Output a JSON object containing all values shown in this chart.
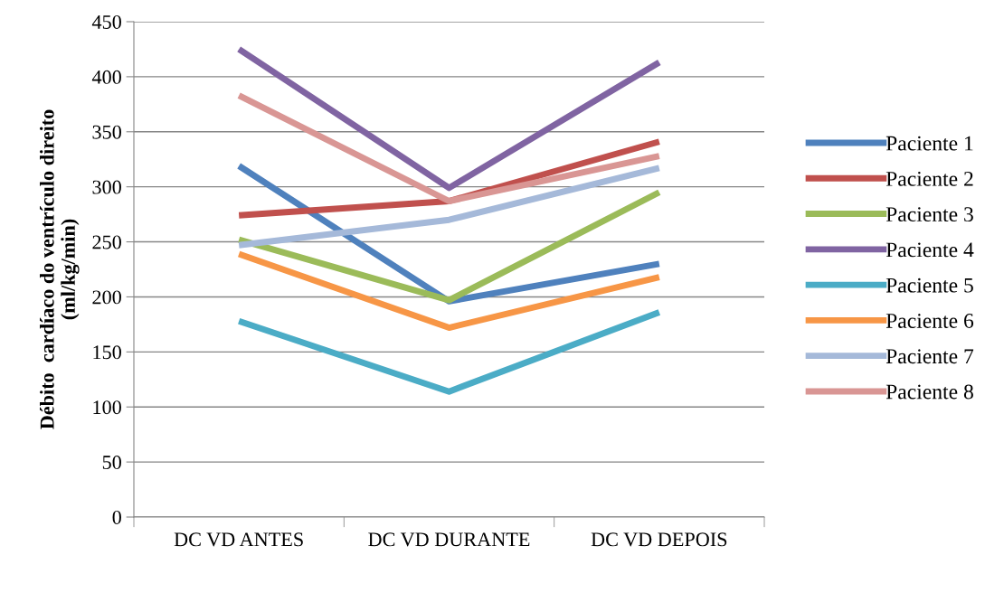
{
  "chart_data": {
    "type": "line",
    "ylabel": "Débito  cardíaco do ventrículo direito\n(ml/kg/min)",
    "categories": [
      "DC VD ANTES",
      "DC VD DURANTE",
      "DC VD DEPOIS"
    ],
    "series": [
      {
        "name": "Paciente 1",
        "color": "#4f81bd",
        "values": [
          319,
          196,
          230
        ]
      },
      {
        "name": "Paciente 2",
        "color": "#c0504d",
        "values": [
          274,
          287,
          341
        ]
      },
      {
        "name": "Paciente 3",
        "color": "#9bbb59",
        "values": [
          252,
          197,
          295
        ]
      },
      {
        "name": "Paciente 4",
        "color": "#8064a2",
        "values": [
          425,
          299,
          413
        ]
      },
      {
        "name": "Paciente 5",
        "color": "#4bacc6",
        "values": [
          178,
          114,
          186
        ]
      },
      {
        "name": "Paciente 6",
        "color": "#f79646",
        "values": [
          239,
          172,
          218
        ]
      },
      {
        "name": "Paciente 7",
        "color": "#a5b9d9",
        "values": [
          247,
          270,
          317
        ]
      },
      {
        "name": "Paciente 8",
        "color": "#d99694",
        "values": [
          383,
          287,
          328
        ]
      }
    ],
    "ylim": [
      0,
      450
    ],
    "yticks": [
      0,
      50,
      100,
      150,
      200,
      250,
      300,
      350,
      400,
      450
    ],
    "grid": "y",
    "legend": "right",
    "marker": "none",
    "line_style": "solid"
  }
}
